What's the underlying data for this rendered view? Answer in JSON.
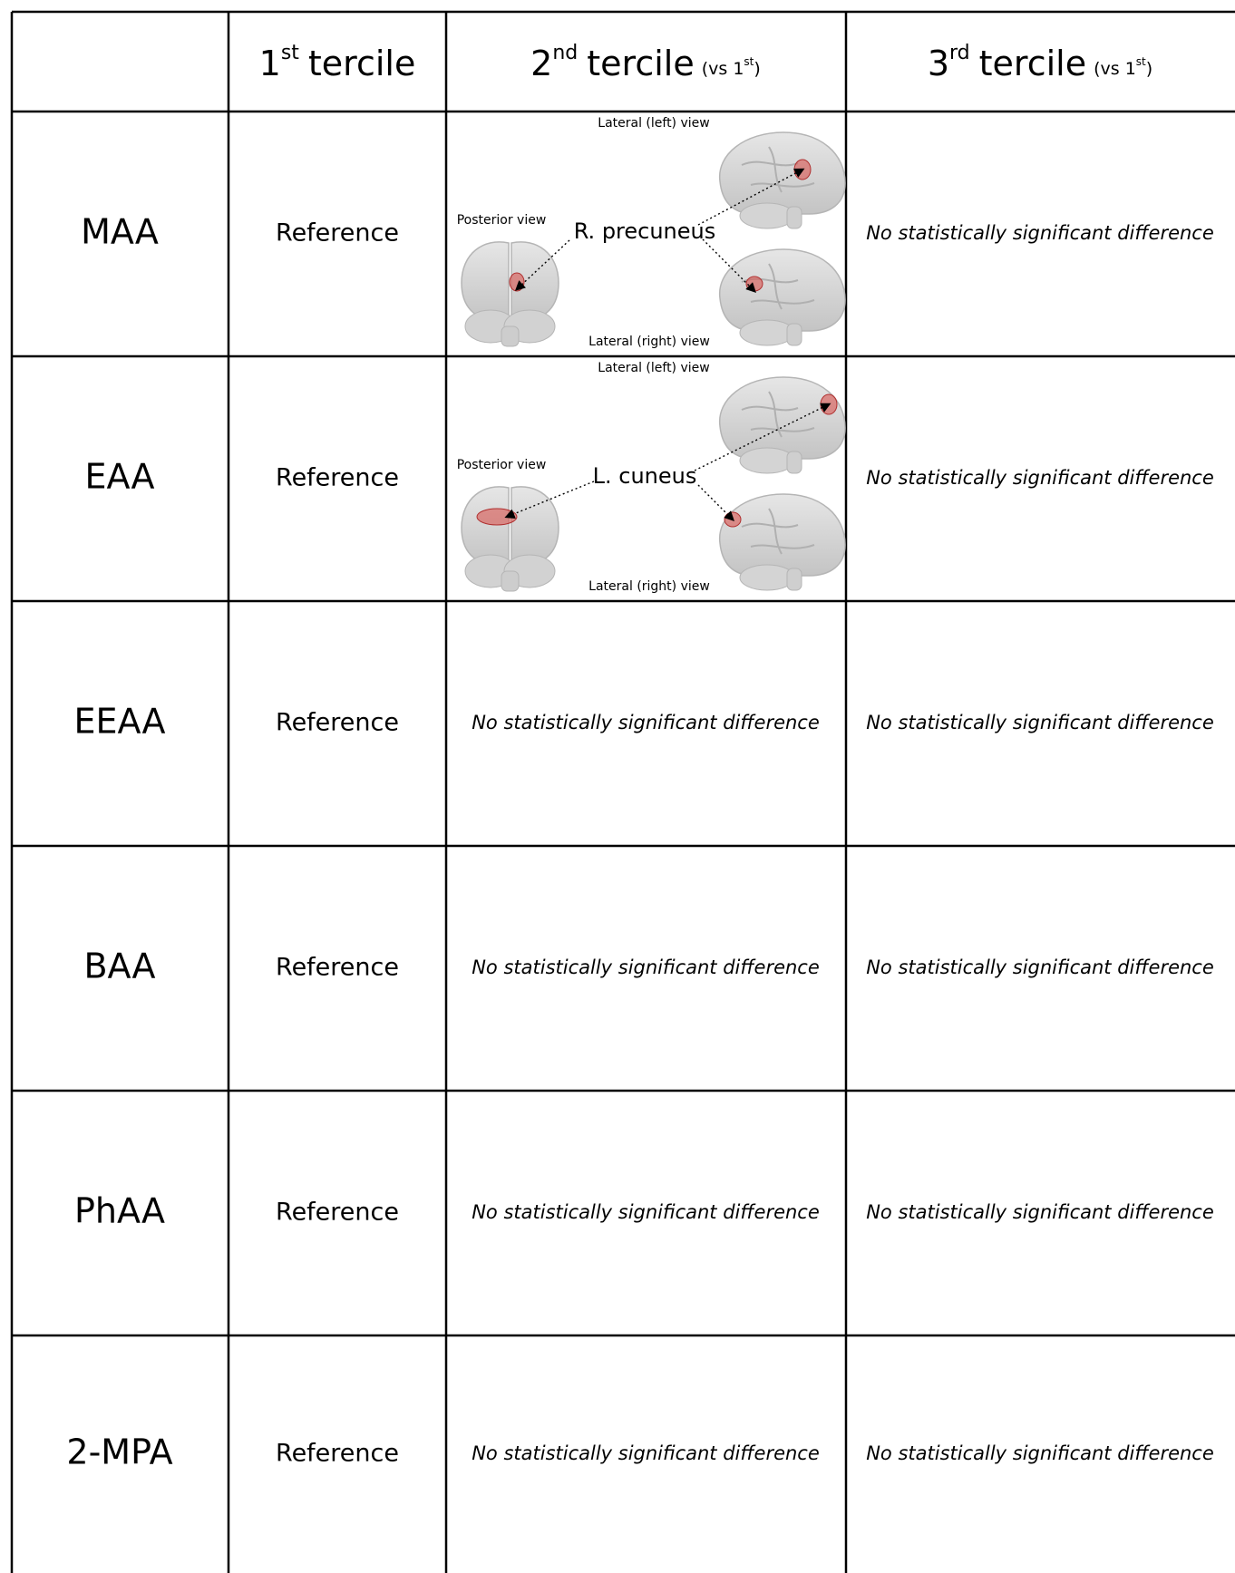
{
  "table": {
    "header": [
      {
        "num": "1",
        "sup": "st",
        "label": "tercile"
      },
      {
        "num": "2",
        "sup": "nd",
        "label": "tercile",
        "note": "(vs 1",
        "note_sup": "st",
        "note_end": ")"
      },
      {
        "num": "3",
        "sup": "rd",
        "label": "tercile",
        "note": "(vs 1",
        "note_sup": "st",
        "note_end": ")"
      }
    ],
    "rows": [
      {
        "name": "MAA",
        "first": "Reference",
        "second": {
          "lateral_left": "Lateral (left) view",
          "posterior": "Posterior view",
          "region": "R. precuneus",
          "lateral_right": "Lateral (right) view"
        },
        "third": "No statistically significant difference"
      },
      {
        "name": "EAA",
        "first": "Reference",
        "second": {
          "lateral_left": "Lateral (left) view",
          "posterior": "Posterior view",
          "region": "L. cuneus",
          "lateral_right": "Lateral (right) view"
        },
        "third": "No statistically significant difference"
      },
      {
        "name": "EEAA",
        "first": "Reference",
        "second": "No statistically significant difference",
        "third": "No statistically significant difference"
      },
      {
        "name": "BAA",
        "first": "Reference",
        "second": "No statistically significant difference",
        "third": "No statistically significant difference"
      },
      {
        "name": "PhAA",
        "first": "Reference",
        "second": "No statistically significant difference",
        "third": "No statistically significant difference"
      },
      {
        "name": "2-MPA",
        "first": "Reference",
        "second": "No statistically significant difference",
        "third": "No statistically significant difference"
      }
    ]
  }
}
